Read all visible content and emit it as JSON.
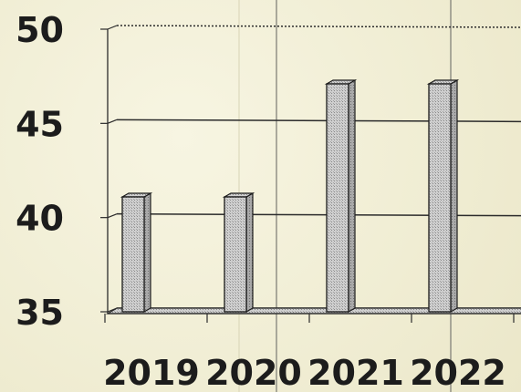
{
  "chart_data": {
    "type": "bar",
    "categories": [
      "2019",
      "2020",
      "2021",
      "2022"
    ],
    "values": [
      41,
      41,
      47,
      47
    ],
    "title": "",
    "xlabel": "",
    "ylabel": "",
    "ylim": [
      35,
      50
    ],
    "yticks": [
      "35",
      "40",
      "45",
      "50"
    ],
    "grid": true,
    "bar_color": "#c9c9c9",
    "bar_style": "3d-hatched"
  }
}
